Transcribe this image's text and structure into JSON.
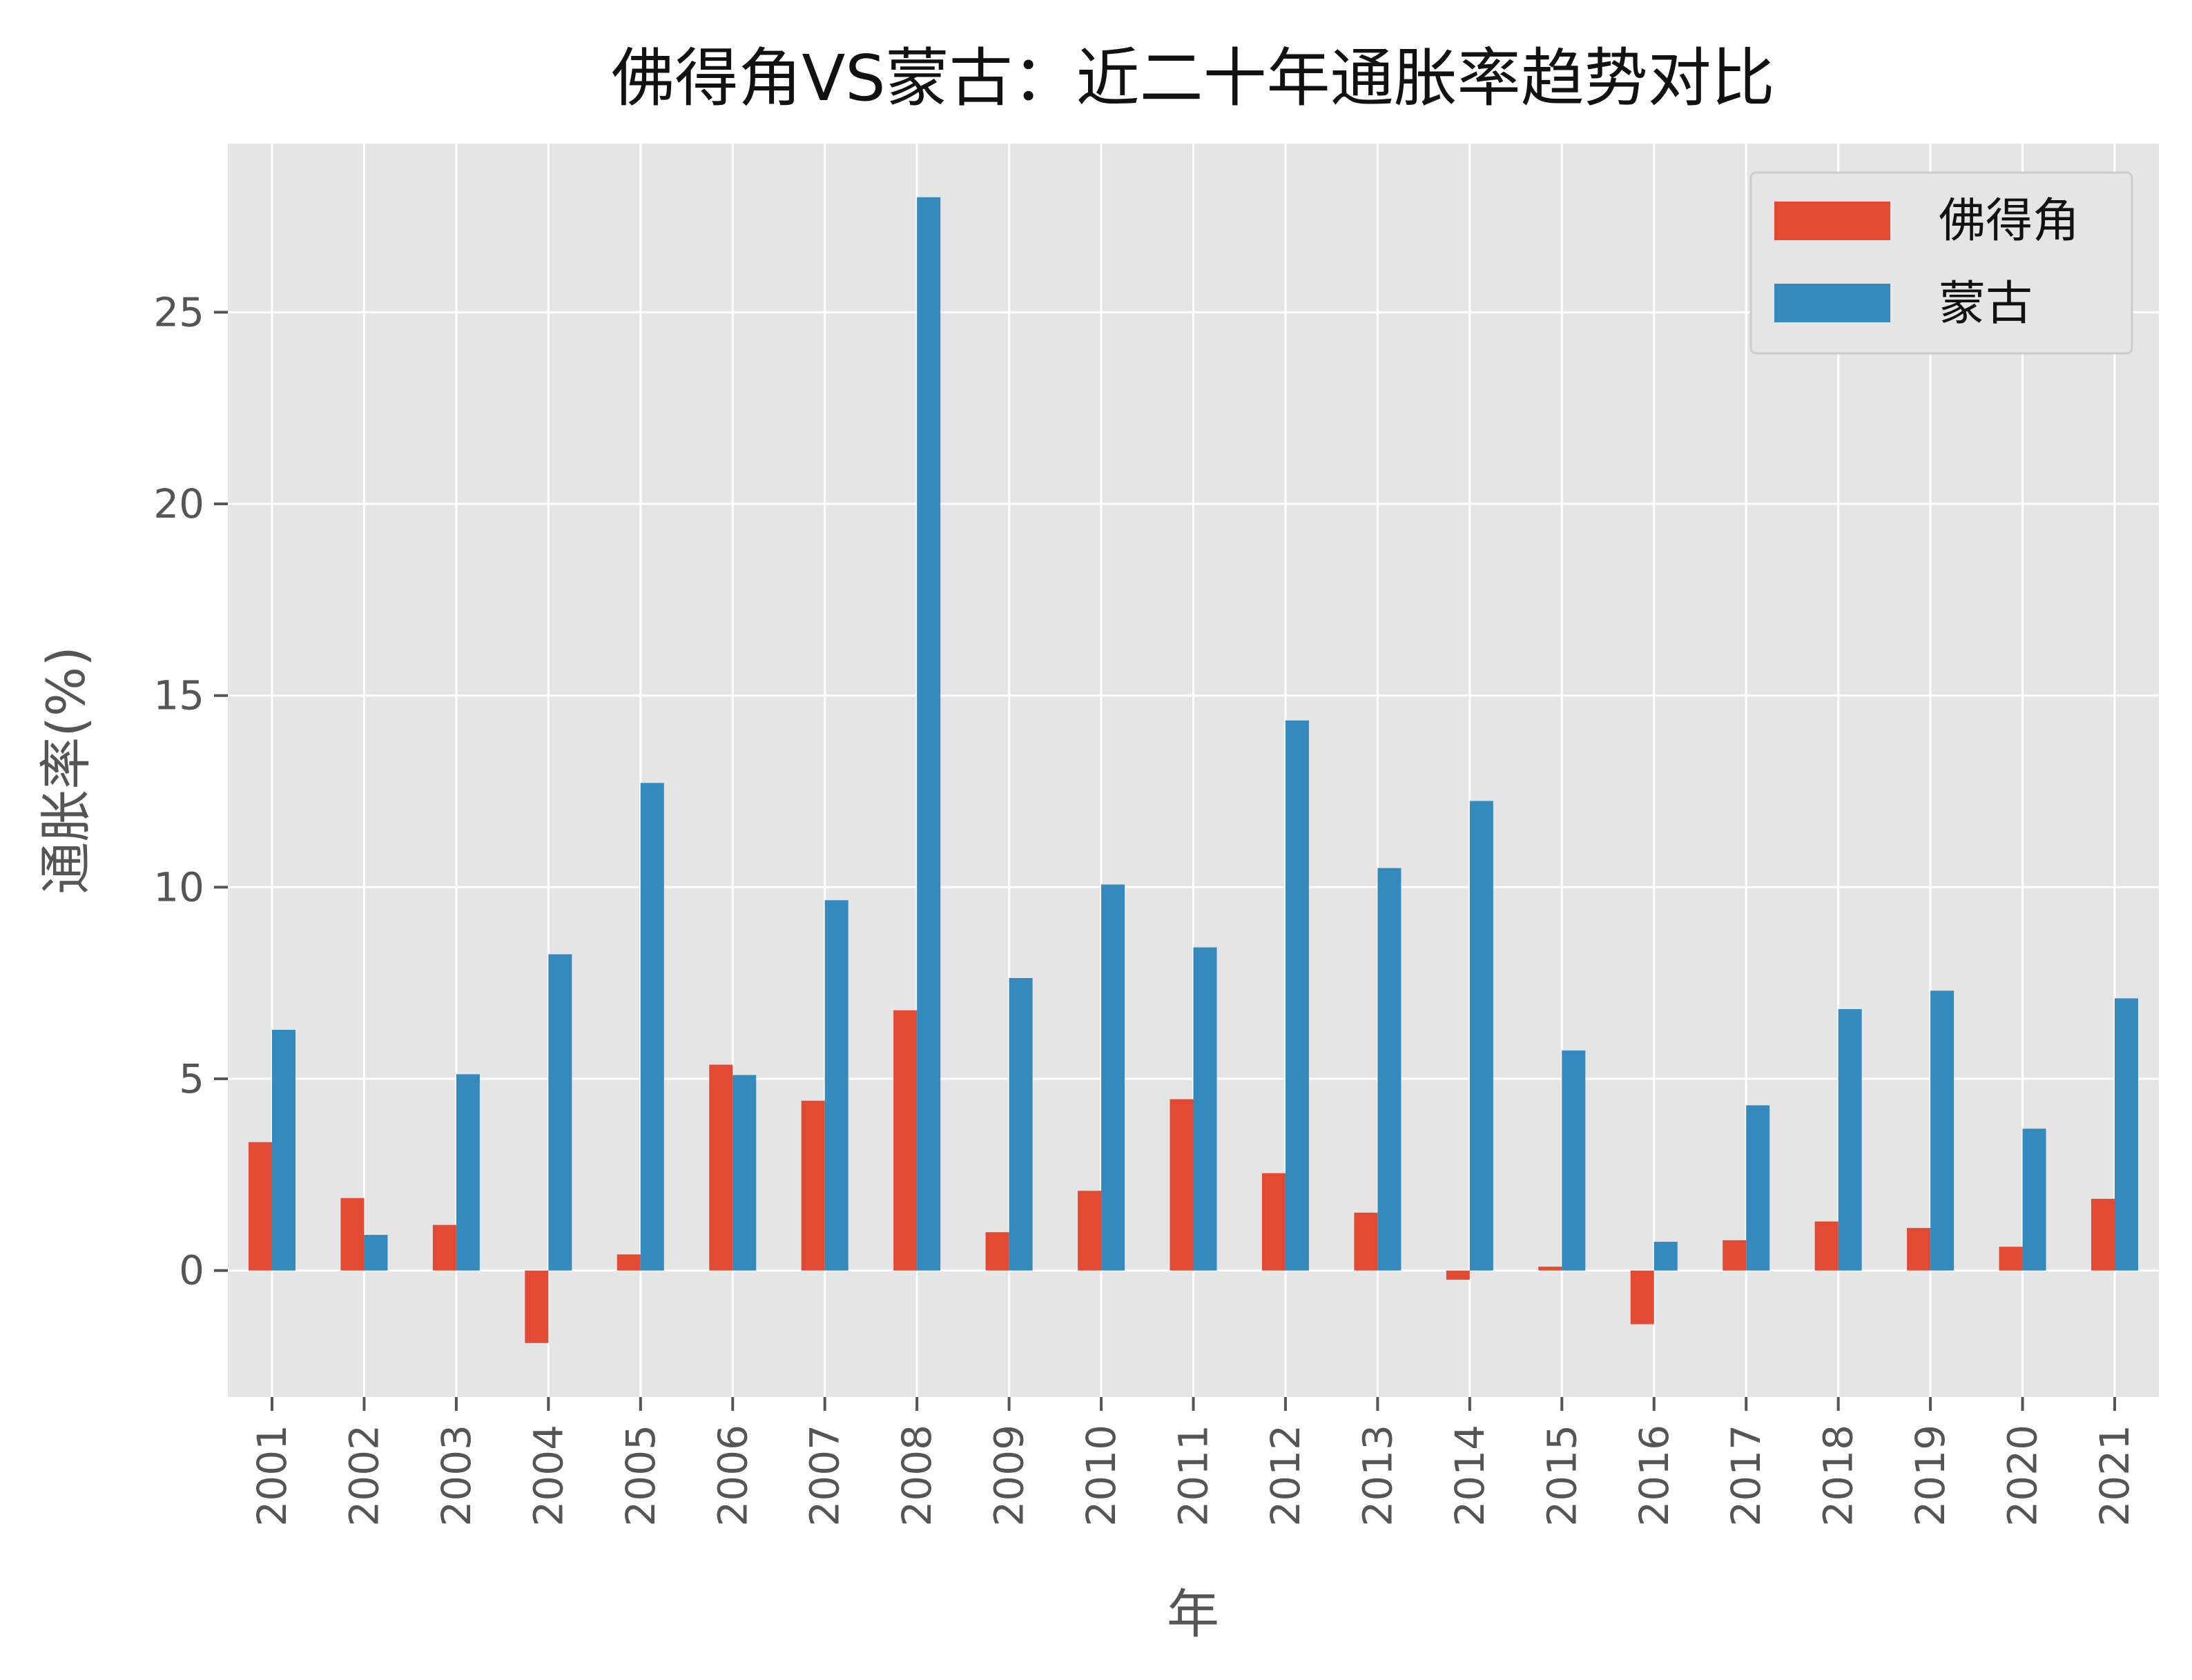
{
  "chart_data": {
    "type": "bar",
    "title": "佛得角VS蒙古：近二十年通胀率趋势对比",
    "xlabel": "年",
    "ylabel": "通胀率(%)",
    "categories": [
      "2001",
      "2002",
      "2003",
      "2004",
      "2005",
      "2006",
      "2007",
      "2008",
      "2009",
      "2010",
      "2011",
      "2012",
      "2013",
      "2014",
      "2015",
      "2016",
      "2017",
      "2018",
      "2019",
      "2020",
      "2021"
    ],
    "series": [
      {
        "name": "佛得角",
        "color": "#E24A33",
        "values": [
          3.35,
          1.89,
          1.19,
          -1.89,
          0.42,
          5.37,
          4.43,
          6.79,
          1.0,
          2.08,
          4.47,
          2.54,
          1.51,
          -0.24,
          0.1,
          -1.4,
          0.79,
          1.28,
          1.11,
          0.62,
          1.87
        ]
      },
      {
        "name": "蒙古",
        "color": "#348ABD",
        "values": [
          6.28,
          0.93,
          5.12,
          8.25,
          12.72,
          5.1,
          9.66,
          28.0,
          7.63,
          10.07,
          8.43,
          14.35,
          10.5,
          12.25,
          5.74,
          0.75,
          4.31,
          6.82,
          7.3,
          3.7,
          7.1
        ]
      }
    ],
    "yticks": [
      0,
      5,
      10,
      15,
      20,
      25
    ],
    "ylim": [
      -3.3,
      29.4
    ],
    "grid": true,
    "legend_position": "top-right",
    "background_color": "#E5E5E5",
    "grid_color": "#FFFFFF"
  }
}
